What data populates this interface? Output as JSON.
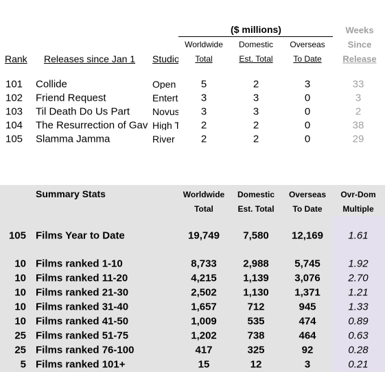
{
  "top": {
    "units": "($ millions)",
    "weeks_header": [
      "Weeks",
      "Since",
      "Release"
    ],
    "columns": {
      "rank": "Rank",
      "title": "Releases since Jan 1",
      "studio": "Studio",
      "worldwide": [
        "Worldwide",
        "Total"
      ],
      "domestic": [
        "Domestic",
        "Est. Total"
      ],
      "overseas": [
        "Overseas",
        "To Date"
      ]
    },
    "rows": [
      [
        101,
        "Collide",
        "Open",
        5,
        2,
        3,
        33
      ],
      [
        102,
        "Friend Request",
        "Entert",
        3,
        3,
        0,
        3
      ],
      [
        103,
        "Til Death Do Us Part",
        "Novus",
        3,
        3,
        0,
        2
      ],
      [
        104,
        "The Resurrection of Gav",
        "High T",
        2,
        2,
        0,
        38
      ],
      [
        105,
        "Slamma Jamma",
        "River",
        2,
        2,
        0,
        29
      ]
    ]
  },
  "summary": {
    "title": "Summary Stats",
    "columns": {
      "worldwide": [
        "Worldwide",
        "Total"
      ],
      "domestic": [
        "Domestic",
        "Est. Total"
      ],
      "overseas": [
        "Overseas",
        "To Date"
      ],
      "multiple": [
        "Ovr-Dom",
        "Multiple"
      ]
    },
    "rows": [
      [
        105,
        "Films Year to Date",
        "19,749",
        "7,580",
        "12,169",
        "1.61"
      ],
      [
        10,
        "Films ranked 1-10",
        "8,733",
        "2,988",
        "5,745",
        "1.92"
      ],
      [
        10,
        "Films ranked 11-20",
        "4,215",
        "1,139",
        "3,076",
        "2.70"
      ],
      [
        10,
        "Films ranked 21-30",
        "2,502",
        "1,130",
        "1,371",
        "1.21"
      ],
      [
        10,
        "Films ranked 31-40",
        "1,657",
        "712",
        "945",
        "1.33"
      ],
      [
        10,
        "Films ranked 41-50",
        "1,009",
        "535",
        "474",
        "0.89"
      ],
      [
        25,
        "Films ranked 51-75",
        "1,202",
        "738",
        "464",
        "0.63"
      ],
      [
        25,
        "Films ranked 76-100",
        "417",
        "325",
        "92",
        "0.28"
      ],
      [
        5,
        "Films ranked 101+",
        "15",
        "12",
        "3",
        "0.21"
      ]
    ]
  }
}
